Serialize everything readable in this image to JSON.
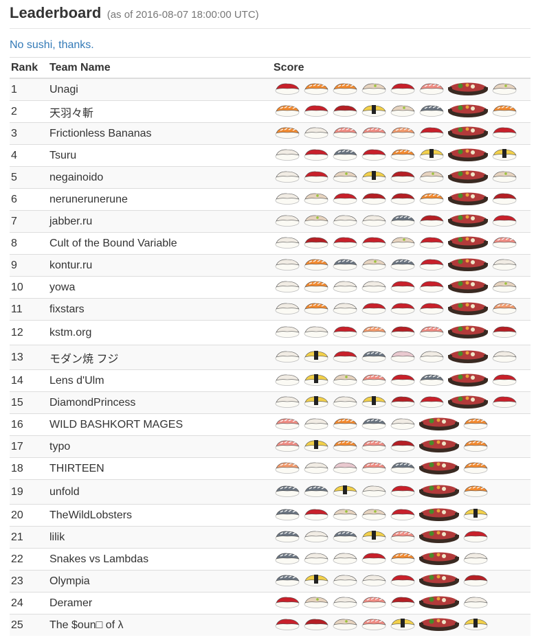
{
  "header": {
    "title": "Leaderboard",
    "subtitle": "(as of 2016-08-07 18:00:00 UTC)"
  },
  "toggle_label": "No sushi, thanks.",
  "columns": {
    "rank": "Rank",
    "team": "Team Name",
    "score": "Score"
  },
  "colors": {
    "maguro": "#c8202a",
    "salmon": "#f28a30",
    "hamachi": "#e6d3bf",
    "toro": "#ef8c83",
    "saba": "#6a7480",
    "tamago": "#f2d04a",
    "ebi": "#f29a6c",
    "tako": "#e9c9cf",
    "nori": "#222222",
    "rice": "#fbfaf4",
    "pot": "#3a2a22",
    "beef": "#b23a3a",
    "greens": "#4a8c2a"
  },
  "rows": [
    {
      "rank": "1",
      "team": "Unagi",
      "pieces": [
        "maguro",
        "salmon",
        "salmon",
        "hamachi",
        "maguro",
        "toro",
        "sukiyaki",
        "hamachi"
      ]
    },
    {
      "rank": "2",
      "team": "天羽々斬",
      "pieces": [
        "salmon",
        "maguro",
        "akami",
        "tamago",
        "hamachi",
        "saba",
        "sukiyaki",
        "salmon"
      ]
    },
    {
      "rank": "3",
      "team": "Frictionless Bananas",
      "pieces": [
        "salmon",
        "ika",
        "toro",
        "toro",
        "ebi",
        "maguro",
        "sukiyaki",
        "maguro"
      ]
    },
    {
      "rank": "4",
      "team": "Tsuru",
      "pieces": [
        "ika",
        "maguro",
        "saba",
        "maguro",
        "salmon",
        "tamago",
        "sukiyaki",
        "tamago"
      ]
    },
    {
      "rank": "5",
      "team": "negainoido",
      "pieces": [
        "ika",
        "maguro",
        "hamachi",
        "tamago",
        "akami",
        "hamachi",
        "sukiyaki",
        "hamachi"
      ]
    },
    {
      "rank": "6",
      "team": "nerunerunerune",
      "pieces": [
        "ika",
        "hamachi",
        "maguro",
        "akami",
        "akami",
        "salmon",
        "sukiyaki",
        "akami"
      ]
    },
    {
      "rank": "7",
      "team": "jabber.ru",
      "pieces": [
        "ika",
        "hamachi",
        "ika",
        "ika",
        "saba",
        "akami",
        "sukiyaki",
        "maguro"
      ]
    },
    {
      "rank": "8",
      "team": "Cult of the Bound Variable",
      "pieces": [
        "ika",
        "akami",
        "maguro",
        "maguro",
        "hamachi",
        "maguro",
        "sukiyaki",
        "toro"
      ]
    },
    {
      "rank": "9",
      "team": "kontur.ru",
      "pieces": [
        "ika",
        "salmon",
        "saba",
        "hamachi",
        "saba",
        "maguro",
        "sukiyaki",
        "ika"
      ]
    },
    {
      "rank": "10",
      "team": "yowa",
      "pieces": [
        "ika",
        "salmon",
        "ika",
        "ika",
        "maguro",
        "maguro",
        "sukiyaki",
        "hamachi"
      ]
    },
    {
      "rank": "11",
      "team": "fixstars",
      "pieces": [
        "ika",
        "salmon",
        "ika",
        "maguro",
        "maguro",
        "maguro",
        "sukiyaki",
        "ebi"
      ]
    },
    {
      "rank": "12",
      "team": "kstm.org",
      "pieces": [
        "ika",
        "ika",
        "maguro",
        "ebi",
        "akami",
        "toro",
        "sukiyaki",
        "akami"
      ]
    },
    {
      "rank": "13",
      "team": "モダン焼 フジ",
      "pieces": [
        "ika",
        "tamago",
        "maguro",
        "saba",
        "tako",
        "ika",
        "sukiyaki",
        "ika"
      ]
    },
    {
      "rank": "14",
      "team": "Lens d'Ulm",
      "pieces": [
        "ika",
        "tamago",
        "hamachi",
        "toro",
        "maguro",
        "saba",
        "sukiyaki",
        "maguro"
      ]
    },
    {
      "rank": "15",
      "team": "DiamondPrincess",
      "pieces": [
        "ika",
        "tamago",
        "ika",
        "tamago",
        "akami",
        "maguro",
        "sukiyaki",
        "maguro"
      ]
    },
    {
      "rank": "16",
      "team": "WILD BASHKORT MAGES",
      "pieces": [
        "toro",
        "ika",
        "salmon",
        "saba",
        "ika",
        "sukiyaki",
        "salmon"
      ]
    },
    {
      "rank": "17",
      "team": "typo",
      "pieces": [
        "toro",
        "tamago",
        "salmon",
        "toro",
        "akami",
        "sukiyaki",
        "salmon"
      ]
    },
    {
      "rank": "18",
      "team": "THIRTEEN",
      "pieces": [
        "ebi",
        "ika",
        "tako",
        "toro",
        "saba",
        "sukiyaki",
        "salmon"
      ]
    },
    {
      "rank": "19",
      "team": "unfold",
      "pieces": [
        "saba",
        "saba",
        "tamago",
        "ika",
        "maguro",
        "sukiyaki",
        "salmon"
      ]
    },
    {
      "rank": "20",
      "team": "TheWildLobsters",
      "pieces": [
        "saba",
        "maguro",
        "hamachi",
        "hamachi",
        "maguro",
        "sukiyaki",
        "tamago"
      ]
    },
    {
      "rank": "21",
      "team": "lilik",
      "pieces": [
        "saba",
        "ika",
        "saba",
        "tamago",
        "toro",
        "sukiyaki",
        "maguro"
      ]
    },
    {
      "rank": "22",
      "team": "Snakes vs Lambdas",
      "pieces": [
        "saba",
        "ika",
        "ika",
        "maguro",
        "salmon",
        "sukiyaki",
        "ika"
      ]
    },
    {
      "rank": "23",
      "team": "Olympia",
      "pieces": [
        "saba",
        "tamago",
        "ika",
        "ika",
        "maguro",
        "sukiyaki",
        "akami"
      ]
    },
    {
      "rank": "24",
      "team": "Deramer",
      "pieces": [
        "maguro",
        "hamachi",
        "ika",
        "toro",
        "akami",
        "sukiyaki",
        "ika"
      ]
    },
    {
      "rank": "25",
      "team": "The $oun□ of λ",
      "pieces": [
        "maguro",
        "akami",
        "hamachi",
        "toro",
        "tamago",
        "sukiyaki",
        "tamago"
      ]
    }
  ]
}
